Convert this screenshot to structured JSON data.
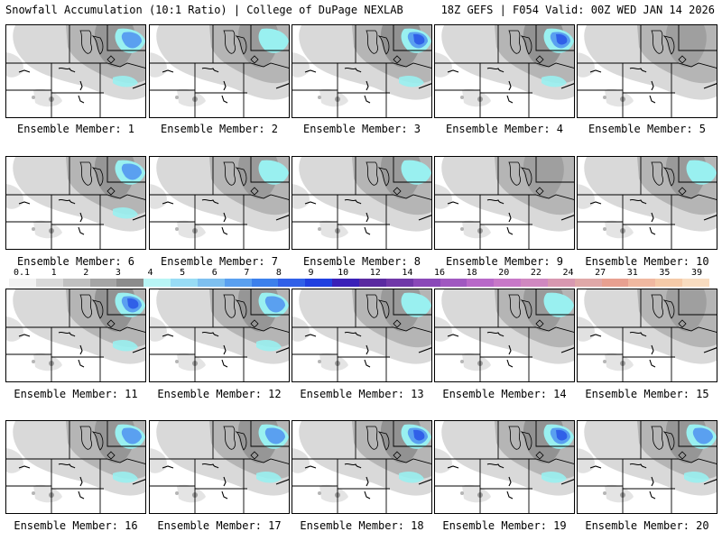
{
  "header": {
    "left_title": "Snowfall Accumulation (10:1 Ratio) | College of DuPage NEXLAB",
    "right_title": "18Z GEFS | F054 Valid: 00Z WED JAN 14 2026"
  },
  "colors": {
    "background": "#ffffff",
    "border": "#000000",
    "light_snow": "#d9d9d9",
    "mid_snow": "#b5b5b5",
    "heavy_gray": "#8c8c8c",
    "cyan": "#99f0f0",
    "blue": "#5aa0f0",
    "deep_blue": "#3060e8"
  },
  "colorbar": {
    "ticks": [
      "0.1",
      "1",
      "2",
      "3",
      "4",
      "5",
      "6",
      "7",
      "8",
      "9",
      "10",
      "12",
      "14",
      "16",
      "18",
      "20",
      "22",
      "24",
      "27",
      "31",
      "35",
      "39"
    ],
    "colors": [
      "#f2f2f2",
      "#d9d9d9",
      "#c0c0c0",
      "#a5a5a5",
      "#8c8c8c",
      "#b8f5f5",
      "#98dcf5",
      "#7ec0f0",
      "#5aa0f0",
      "#3c80ec",
      "#3060e8",
      "#2040e0",
      "#3a20b8",
      "#5a2aa0",
      "#7038a8",
      "#8a48b8",
      "#a058c0",
      "#b868c8",
      "#c878c8",
      "#d088c0",
      "#d898b0",
      "#e0a8a8",
      "#e8a090",
      "#f0b8a0",
      "#f5caa8",
      "#f8dcc0"
    ]
  },
  "members": [
    {
      "label": "Ensemble Member: 1",
      "intensity": 3
    },
    {
      "label": "Ensemble Member: 2",
      "intensity": 2
    },
    {
      "label": "Ensemble Member: 3",
      "intensity": 4
    },
    {
      "label": "Ensemble Member: 4",
      "intensity": 4
    },
    {
      "label": "Ensemble Member: 5",
      "intensity": 1
    },
    {
      "label": "Ensemble Member: 6",
      "intensity": 3
    },
    {
      "label": "Ensemble Member: 7",
      "intensity": 2
    },
    {
      "label": "Ensemble Member: 8",
      "intensity": 2
    },
    {
      "label": "Ensemble Member: 9",
      "intensity": 1
    },
    {
      "label": "Ensemble Member: 10",
      "intensity": 2
    },
    {
      "label": "Ensemble Member: 11",
      "intensity": 4
    },
    {
      "label": "Ensemble Member: 12",
      "intensity": 3
    },
    {
      "label": "Ensemble Member: 13",
      "intensity": 2
    },
    {
      "label": "Ensemble Member: 14",
      "intensity": 2
    },
    {
      "label": "Ensemble Member: 15",
      "intensity": 1
    },
    {
      "label": "Ensemble Member: 16",
      "intensity": 3
    },
    {
      "label": "Ensemble Member: 17",
      "intensity": 3
    },
    {
      "label": "Ensemble Member: 18",
      "intensity": 4
    },
    {
      "label": "Ensemble Member: 19",
      "intensity": 4
    },
    {
      "label": "Ensemble Member: 20",
      "intensity": 3
    }
  ]
}
